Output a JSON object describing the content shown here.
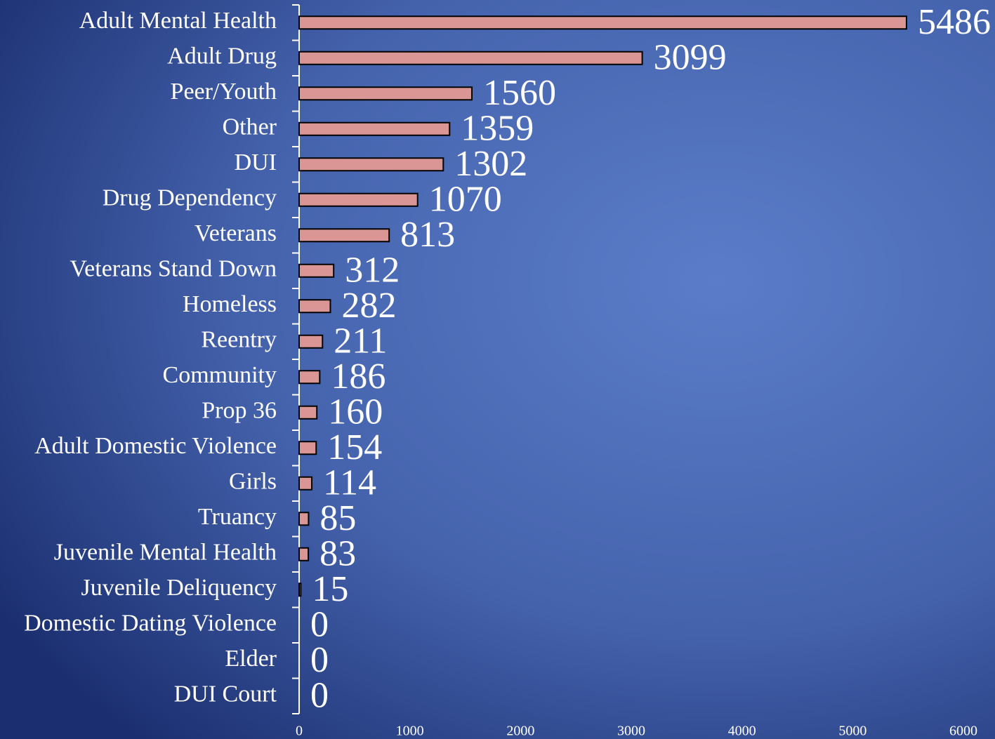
{
  "chart_data": {
    "type": "bar",
    "orientation": "horizontal",
    "categories": [
      "Adult Mental Health",
      "Adult Drug",
      "Peer/Youth",
      "Other",
      "DUI",
      "Drug Dependency",
      "Veterans",
      "Veterans Stand Down",
      "Homeless",
      "Reentry",
      "Community",
      "Prop 36",
      "Adult Domestic Violence",
      "Girls",
      "Truancy",
      "Juvenile Mental Health",
      "Juvenile Deliquency",
      "Domestic Dating Violence",
      "Elder",
      "DUI Court"
    ],
    "values": [
      5486,
      3099,
      1560,
      1359,
      1302,
      1070,
      813,
      312,
      282,
      211,
      186,
      160,
      154,
      114,
      85,
      83,
      15,
      0,
      0,
      0
    ],
    "color": "#d99694",
    "xlim": [
      0,
      6000
    ],
    "xticks": [
      0,
      1000,
      2000,
      3000,
      4000,
      5000,
      6000
    ],
    "grid": false
  }
}
